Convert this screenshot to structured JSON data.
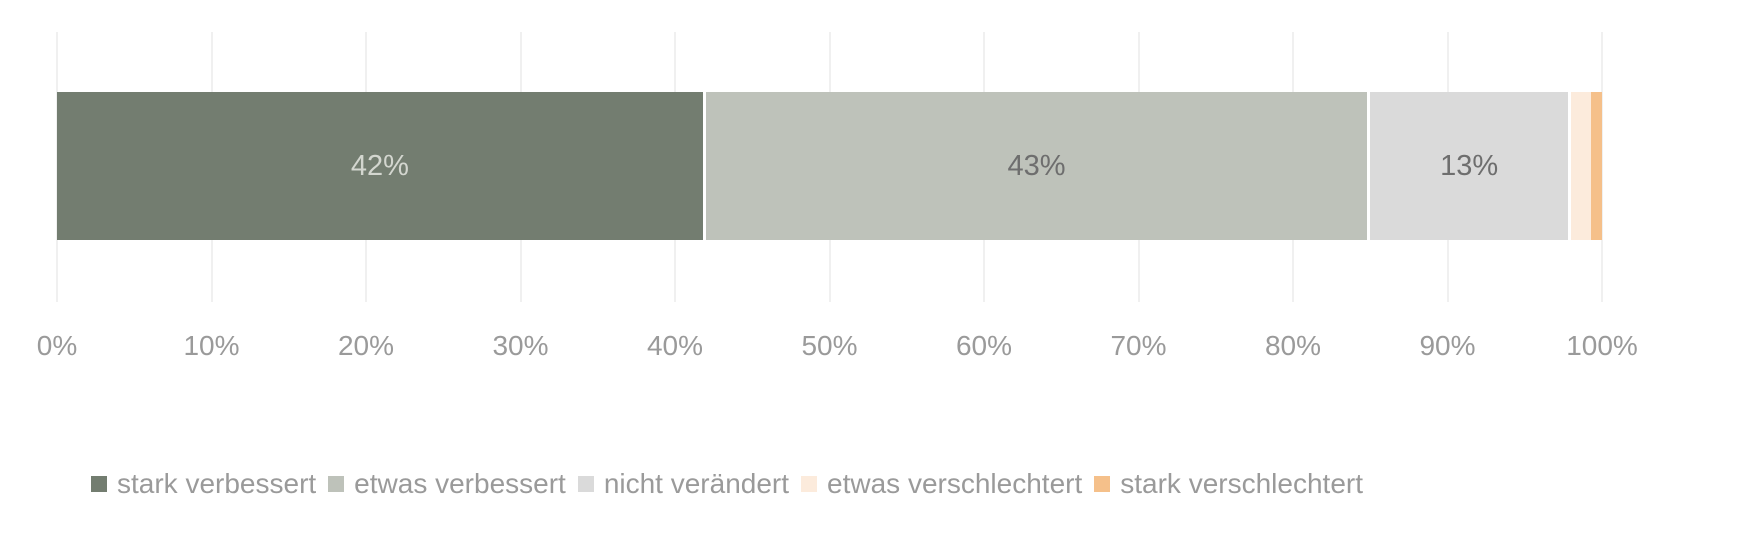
{
  "chart_data": {
    "type": "bar",
    "orientation": "horizontal",
    "stacked": true,
    "normalized_100": true,
    "title": "",
    "xlabel": "",
    "ylabel": "",
    "xlim": [
      0,
      100
    ],
    "grid": true,
    "legend_position": "bottom",
    "x_ticks": [
      "0%",
      "10%",
      "20%",
      "30%",
      "40%",
      "50%",
      "60%",
      "70%",
      "80%",
      "90%",
      "100%"
    ],
    "categories": [
      ""
    ],
    "series": [
      {
        "name": "stark verbessert",
        "values": [
          42
        ],
        "color": "#737d70",
        "label": "42%",
        "label_color": "#d3d6cf"
      },
      {
        "name": "etwas verbessert",
        "values": [
          43
        ],
        "color": "#bec2ba",
        "label": "43%",
        "label_color": "#6e6e6e"
      },
      {
        "name": "nicht verändert",
        "values": [
          13
        ],
        "color": "#dadada",
        "label": "13%",
        "label_color": "#6e6e6e"
      },
      {
        "name": "etwas verschlechtert",
        "values": [
          1.3
        ],
        "color": "#fcebdc",
        "label": "",
        "label_color": ""
      },
      {
        "name": "stark verschlechtert",
        "values": [
          0.7
        ],
        "color": "#f5c08a",
        "label": "",
        "label_color": ""
      }
    ]
  }
}
